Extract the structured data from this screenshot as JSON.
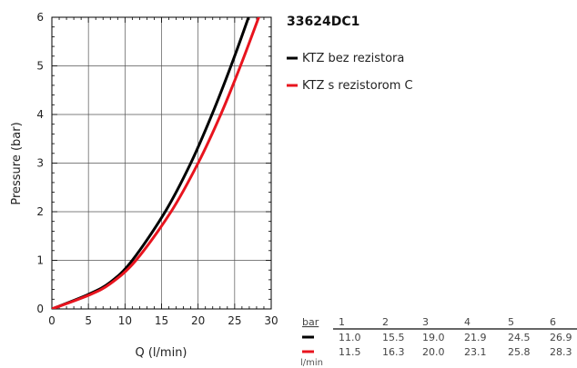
{
  "chart_data": {
    "type": "line",
    "title": "33624DC1",
    "xlabel": "Q (l/min)",
    "ylabel": "Pressure (bar)",
    "xlim": [
      0,
      30
    ],
    "ylim": [
      0,
      6
    ],
    "xticks": [
      "0",
      "5",
      "10",
      "15",
      "20",
      "25",
      "30"
    ],
    "yticks": [
      "0",
      "1",
      "2",
      "3",
      "4",
      "5",
      "6"
    ],
    "grid": true,
    "legend_position": "right",
    "series": [
      {
        "name": "KTZ bez rezistora",
        "color": "#000000",
        "x": [
          0,
          5,
          8,
          11.0,
          15.5,
          19.0,
          21.9,
          24.5,
          26.9,
          27.3
        ],
        "y": [
          0,
          0.3,
          0.55,
          1,
          2,
          3,
          4,
          5,
          6,
          6.2
        ]
      },
      {
        "name": "KTZ s rezistorom C",
        "color": "#e8141e",
        "x": [
          0,
          5,
          8,
          11.5,
          16.3,
          20.0,
          23.1,
          25.8,
          28.3,
          28.8
        ],
        "y": [
          0,
          0.28,
          0.52,
          1,
          2,
          3,
          4,
          5,
          6,
          6.2
        ]
      }
    ]
  },
  "table": {
    "header_label": "bar",
    "unit_label": "l/min",
    "pressures": [
      "1",
      "2",
      "3",
      "4",
      "5",
      "6"
    ],
    "rows": [
      {
        "color": "#000000",
        "values": [
          "11.0",
          "15.5",
          "19.0",
          "21.9",
          "24.5",
          "26.9"
        ]
      },
      {
        "color": "#e8141e",
        "values": [
          "11.5",
          "16.3",
          "20.0",
          "23.1",
          "25.8",
          "28.3"
        ]
      }
    ]
  }
}
